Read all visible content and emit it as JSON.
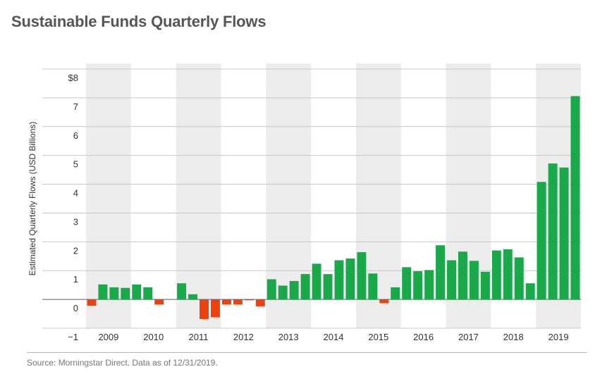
{
  "title": "Sustainable Funds Quarterly Flows",
  "source": "Source: Morningstar Direct. Data as of 12/31/2019.",
  "colors": {
    "positive": "#1aa84a",
    "negative": "#ee4110",
    "band": "#ececec",
    "grid": "#c9c9c9"
  },
  "chart_data": {
    "type": "bar",
    "title": "Sustainable Funds Quarterly Flows",
    "ylabel": "Estimated Quarterly Flows (USD Billions)",
    "xlabel": "",
    "ylim": [
      -1,
      8
    ],
    "yticks": [
      {
        "value": 8,
        "label": "$8"
      },
      {
        "value": 7,
        "label": "7"
      },
      {
        "value": 6,
        "label": "6"
      },
      {
        "value": 5,
        "label": "5"
      },
      {
        "value": 4,
        "label": "4"
      },
      {
        "value": 3,
        "label": "3"
      },
      {
        "value": 2,
        "label": "2"
      },
      {
        "value": 1,
        "label": "1"
      },
      {
        "value": 0,
        "label": "0"
      },
      {
        "value": -1,
        "label": "−1"
      }
    ],
    "years": [
      "2009",
      "2010",
      "2011",
      "2012",
      "2013",
      "2014",
      "2015",
      "2016",
      "2017",
      "2018",
      "2019"
    ],
    "shaded_years": [
      "2009",
      "2011",
      "2013",
      "2015",
      "2017",
      "2019"
    ],
    "grid": true,
    "values": [
      -0.22,
      0.52,
      0.42,
      0.4,
      0.52,
      0.42,
      -0.18,
      0.0,
      0.56,
      0.18,
      -0.68,
      -0.62,
      -0.18,
      -0.18,
      -0.03,
      -0.24,
      0.7,
      0.48,
      0.64,
      0.88,
      1.24,
      0.88,
      1.36,
      1.42,
      1.64,
      0.9,
      -0.13,
      0.42,
      1.12,
      0.98,
      1.02,
      1.88,
      1.36,
      1.66,
      1.34,
      0.96,
      1.7,
      1.74,
      1.46,
      0.56,
      4.08,
      4.72,
      4.58,
      7.06
    ]
  }
}
